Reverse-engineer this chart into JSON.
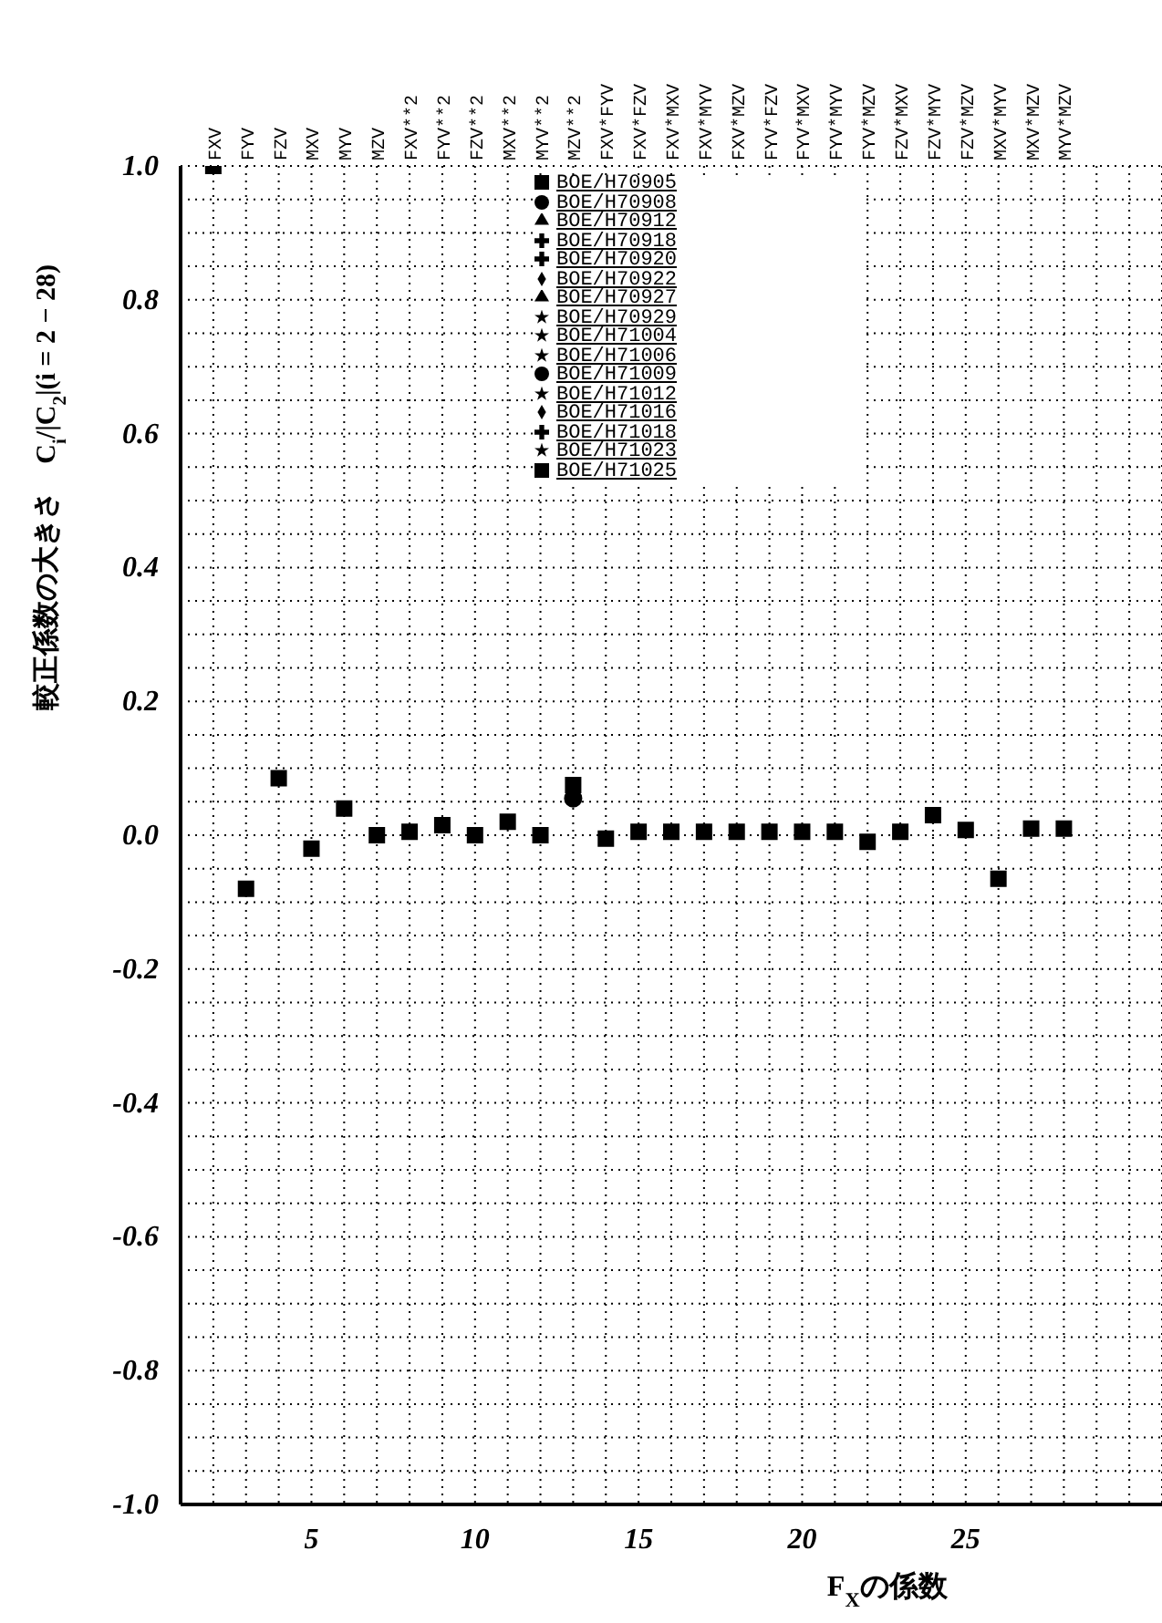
{
  "chart_data": {
    "type": "scatter",
    "ylabel": "較正係数の大きさ　C$_{i}$/|C$_{2}$|(i = 2 − 28)",
    "xlabel": "F$_{X}$の係数",
    "x": [
      2,
      3,
      4,
      5,
      6,
      7,
      8,
      9,
      10,
      11,
      12,
      13,
      14,
      15,
      16,
      17,
      18,
      19,
      20,
      21,
      22,
      23,
      24,
      25,
      26,
      27,
      28
    ],
    "xlim": [
      1,
      31
    ],
    "xticks": [
      {
        "value": 1,
        "label": null
      },
      {
        "value": 2,
        "label": null
      },
      {
        "value": 3,
        "label": null
      },
      {
        "value": 4,
        "label": null
      },
      5,
      {
        "value": 6,
        "label": null
      },
      {
        "value": 7,
        "label": null
      },
      {
        "value": 8,
        "label": null
      },
      {
        "value": 9,
        "label": null
      },
      10,
      {
        "value": 11,
        "label": null
      },
      {
        "value": 12,
        "label": null
      },
      {
        "value": 13,
        "label": null
      },
      {
        "value": 14,
        "label": null
      },
      15,
      {
        "value": 16,
        "label": null
      },
      {
        "value": 17,
        "label": null
      },
      {
        "value": 18,
        "label": null
      },
      {
        "value": 19,
        "label": null
      },
      20,
      {
        "value": 21,
        "label": null
      },
      {
        "value": 22,
        "label": null
      },
      {
        "value": 23,
        "label": null
      },
      {
        "value": 24,
        "label": null
      },
      25,
      {
        "value": 26,
        "label": null
      },
      {
        "value": 27,
        "label": null
      },
      {
        "value": 28,
        "label": null
      },
      {
        "value": 29,
        "label": null
      },
      {
        "value": 30,
        "label": null
      },
      {
        "value": 31,
        "label": null
      }
    ],
    "annotations": [
      "FXV",
      "FYV",
      "FZV",
      "MXV",
      "MYV",
      "MZV",
      "FXV**2",
      "FYV**2",
      "FZV**2",
      "MXV**2",
      "MYV**2",
      "MZV**2",
      "FXV*FYV",
      "FXV*FZV",
      "FXV*MXV",
      "FXV*MYV",
      "FXV*MZV",
      "FYV*FZV",
      "FYV*MXV",
      "FYV*MYV",
      "FYV*MZV",
      "FZV*MXV",
      "FZV*MYV",
      "FZV*MZV",
      "MXV*MYV",
      "MXV*MZV",
      "MYV*MZV"
    ],
    "ylim": [
      -1,
      1
    ],
    "yticks": [
      {
        "value": -1,
        "label": "-1.0"
      },
      {
        "value": -0.95,
        "label": null
      },
      {
        "value": -0.9,
        "label": null
      },
      {
        "value": -0.85,
        "label": null
      },
      {
        "value": -0.8,
        "label": "-0.8"
      },
      {
        "value": -0.75,
        "label": null
      },
      {
        "value": -0.7,
        "label": null
      },
      {
        "value": -0.65,
        "label": null
      },
      {
        "value": -0.6,
        "label": "-0.6"
      },
      {
        "value": -0.55,
        "label": null
      },
      {
        "value": -0.5,
        "label": null
      },
      {
        "value": -0.45,
        "label": null
      },
      {
        "value": -0.4,
        "label": "-0.4"
      },
      {
        "value": -0.35,
        "label": null
      },
      {
        "value": -0.3,
        "label": null
      },
      {
        "value": -0.25,
        "label": null
      },
      {
        "value": -0.2,
        "label": "-0.2"
      },
      {
        "value": -0.15,
        "label": null
      },
      {
        "value": -0.1,
        "label": null
      },
      {
        "value": -0.05,
        "label": null
      },
      {
        "value": 0,
        "label": "0.0"
      },
      {
        "value": 0.05,
        "label": null
      },
      {
        "value": 0.1,
        "label": null
      },
      {
        "value": 0.15,
        "label": null
      },
      {
        "value": 0.2,
        "label": "0.2"
      },
      {
        "value": 0.25,
        "label": null
      },
      {
        "value": 0.3,
        "label": null
      },
      {
        "value": 0.35,
        "label": null
      },
      {
        "value": 0.4,
        "label": "0.4"
      },
      {
        "value": 0.45,
        "label": null
      },
      {
        "value": 0.5,
        "label": null
      },
      {
        "value": 0.55,
        "label": null
      },
      {
        "value": 0.6,
        "label": "0.6"
      },
      {
        "value": 0.65,
        "label": null
      },
      {
        "value": 0.7,
        "label": null
      },
      {
        "value": 0.75,
        "label": null
      },
      {
        "value": 0.8,
        "label": "0.8"
      },
      {
        "value": 0.85,
        "label": null
      },
      {
        "value": 0.9,
        "label": null
      },
      {
        "value": 0.95,
        "label": null
      },
      {
        "value": 1,
        "label": "1.0"
      }
    ],
    "grid": true,
    "legend": "top",
    "series": [
      {
        "name": "BOE/H70905",
        "color": "#000000",
        "marker": "square",
        "values": [
          1.0,
          -0.08,
          0.085,
          -0.02,
          0.04,
          0.0,
          0.005,
          0.015,
          0.0,
          0.02,
          0.0,
          0.075,
          -0.005,
          0.005,
          0.005,
          0.005,
          0.005,
          0.005,
          0.005,
          0.005,
          -0.01,
          0.005,
          0.03,
          0.008,
          -0.065,
          0.01,
          0.01
        ]
      },
      {
        "name": "BOE/H70908",
        "color": "#000000",
        "marker": "circle",
        "values": [
          null,
          null,
          null,
          null,
          null,
          null,
          null,
          null,
          null,
          null,
          null,
          0.055,
          null,
          null,
          null,
          null,
          null,
          null,
          null,
          null,
          null,
          null,
          null,
          null,
          null,
          null,
          null
        ]
      },
      {
        "name": "BOE/H70912",
        "color": "#000000",
        "marker": "triangle",
        "values": [
          null,
          null,
          null,
          null,
          null,
          null,
          null,
          null,
          null,
          null,
          null,
          null,
          null,
          null,
          null,
          null,
          null,
          null,
          null,
          null,
          null,
          null,
          null,
          null,
          null,
          null,
          null
        ]
      },
      {
        "name": "BOE/H70918",
        "color": "#000000",
        "marker": "cross",
        "values": [
          null,
          null,
          null,
          null,
          null,
          null,
          null,
          null,
          null,
          null,
          null,
          null,
          null,
          null,
          null,
          null,
          null,
          null,
          null,
          null,
          null,
          null,
          null,
          null,
          null,
          null,
          null
        ]
      },
      {
        "name": "BOE/H70920",
        "color": "#000000",
        "marker": "cross",
        "values": [
          null,
          null,
          null,
          null,
          null,
          null,
          null,
          null,
          null,
          null,
          null,
          null,
          null,
          null,
          null,
          null,
          null,
          null,
          null,
          null,
          null,
          null,
          null,
          null,
          null,
          null,
          null
        ]
      },
      {
        "name": "BOE/H70922",
        "color": "#000000",
        "marker": "diamond",
        "values": [
          null,
          null,
          null,
          null,
          null,
          null,
          null,
          null,
          null,
          null,
          null,
          null,
          null,
          null,
          null,
          null,
          null,
          null,
          null,
          null,
          null,
          null,
          null,
          null,
          null,
          null,
          null
        ]
      },
      {
        "name": "BOE/H70927",
        "color": "#000000",
        "marker": "triangle",
        "values": [
          null,
          null,
          null,
          null,
          null,
          null,
          null,
          null,
          null,
          null,
          null,
          null,
          null,
          null,
          null,
          null,
          null,
          null,
          null,
          null,
          null,
          null,
          null,
          null,
          null,
          null,
          null
        ]
      },
      {
        "name": "BOE/H70929",
        "color": "#000000",
        "marker": "star",
        "values": [
          null,
          null,
          null,
          null,
          null,
          null,
          null,
          null,
          null,
          null,
          null,
          null,
          null,
          null,
          null,
          null,
          null,
          null,
          null,
          null,
          null,
          null,
          null,
          null,
          null,
          null,
          null
        ]
      },
      {
        "name": "BOE/H71004",
        "color": "#000000",
        "marker": "star",
        "values": [
          null,
          null,
          null,
          null,
          null,
          null,
          null,
          null,
          null,
          null,
          null,
          null,
          null,
          null,
          null,
          null,
          null,
          null,
          null,
          null,
          null,
          null,
          null,
          null,
          null,
          null,
          null
        ]
      },
      {
        "name": "BOE/H71006",
        "color": "#000000",
        "marker": "star",
        "values": [
          null,
          null,
          null,
          null,
          null,
          null,
          null,
          null,
          null,
          null,
          null,
          null,
          null,
          null,
          null,
          null,
          null,
          null,
          null,
          null,
          null,
          null,
          null,
          null,
          null,
          null,
          null
        ]
      },
      {
        "name": "BOE/H71009",
        "color": "#000000",
        "marker": "circle",
        "values": [
          null,
          null,
          null,
          null,
          null,
          null,
          null,
          null,
          null,
          null,
          null,
          null,
          null,
          null,
          null,
          null,
          null,
          null,
          null,
          null,
          null,
          null,
          null,
          null,
          null,
          null,
          null
        ]
      },
      {
        "name": "BOE/H71012",
        "color": "#000000",
        "marker": "star",
        "values": [
          null,
          null,
          null,
          null,
          null,
          null,
          null,
          null,
          null,
          null,
          null,
          null,
          null,
          null,
          null,
          null,
          null,
          null,
          null,
          null,
          null,
          null,
          null,
          null,
          null,
          null,
          null
        ]
      },
      {
        "name": "BOE/H71016",
        "color": "#000000",
        "marker": "diamond",
        "values": [
          null,
          null,
          null,
          null,
          null,
          null,
          null,
          null,
          null,
          null,
          null,
          null,
          null,
          null,
          null,
          null,
          null,
          null,
          null,
          null,
          null,
          null,
          null,
          null,
          null,
          null,
          null
        ]
      },
      {
        "name": "BOE/H71018",
        "color": "#000000",
        "marker": "cross",
        "values": [
          null,
          null,
          null,
          null,
          null,
          null,
          null,
          null,
          null,
          null,
          null,
          null,
          null,
          null,
          null,
          null,
          null,
          null,
          null,
          null,
          null,
          null,
          null,
          null,
          null,
          null,
          null
        ]
      },
      {
        "name": "BOE/H71023",
        "color": "#000000",
        "marker": "star",
        "values": [
          null,
          null,
          null,
          null,
          null,
          null,
          null,
          null,
          null,
          null,
          null,
          null,
          null,
          null,
          null,
          null,
          null,
          null,
          null,
          null,
          null,
          null,
          null,
          null,
          null,
          null,
          null
        ]
      },
      {
        "name": "BOE/H71025",
        "color": "#000000",
        "marker": "square",
        "values": [
          null,
          null,
          null,
          null,
          null,
          null,
          null,
          null,
          null,
          null,
          null,
          null,
          null,
          null,
          null,
          null,
          null,
          null,
          null,
          null,
          null,
          null,
          null,
          null,
          null,
          null,
          null
        ]
      }
    ]
  }
}
